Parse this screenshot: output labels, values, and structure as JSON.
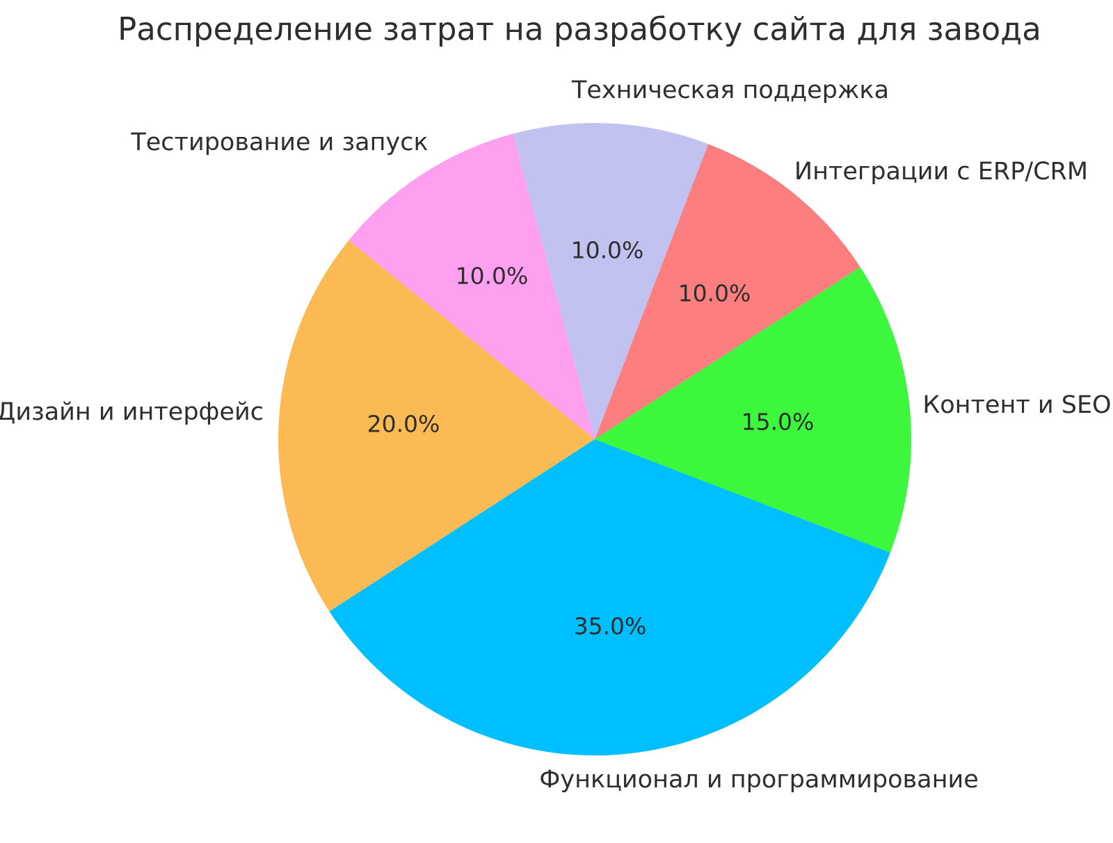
{
  "chart_data": {
    "type": "pie",
    "title": "Распределение затрат на разработку сайта для завода",
    "slices": [
      {
        "label": "Функционал и программирование",
        "value": 35.0,
        "pct_label": "35.0%",
        "color": "#00BFFF"
      },
      {
        "label": "Контент и SEO",
        "value": 15.0,
        "pct_label": "15.0%",
        "color": "#3CF73C"
      },
      {
        "label": "Интеграции с ERP/CRM",
        "value": 10.0,
        "pct_label": "10.0%",
        "color": "#FC7E7E"
      },
      {
        "label": "Техническая поддержка",
        "value": 10.0,
        "pct_label": "10.0%",
        "color": "#C2C2F0"
      },
      {
        "label": "Тестирование и запуск",
        "value": 10.0,
        "pct_label": "10.0%",
        "color": "#FE9FEF"
      },
      {
        "label": "Дизайн и интерфейс",
        "value": 20.0,
        "pct_label": "20.0%",
        "color": "#FCBA55"
      }
    ],
    "start_angle_deg": 213,
    "direction": "counterclockwise",
    "legend": "none",
    "grid": "off",
    "text_color": "#2E2E2E",
    "background": "#FFFFFF"
  }
}
